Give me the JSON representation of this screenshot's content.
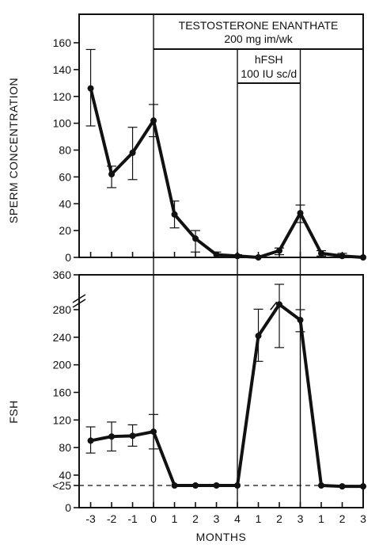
{
  "chart_data": [
    {
      "type": "line",
      "ylabel": "SPERM CONCENTRATION",
      "ylim": [
        0,
        160
      ],
      "yticks": [
        "0",
        "20",
        "40",
        "60",
        "80",
        "100",
        "120",
        "140",
        "160"
      ],
      "series": [
        {
          "x": [
            -3,
            -2,
            -1,
            0,
            1,
            2,
            3,
            4,
            5,
            6,
            7,
            8,
            9,
            10
          ],
          "values": [
            126,
            62,
            78,
            102,
            32,
            14,
            2,
            1,
            0,
            5,
            33,
            3,
            1,
            0
          ],
          "err_low": [
            98,
            52,
            58,
            90,
            22,
            4,
            0,
            0,
            0,
            2,
            26,
            1,
            0,
            0
          ],
          "err_high": [
            155,
            68,
            97,
            114,
            42,
            20,
            4,
            2,
            1,
            7,
            39,
            5,
            3,
            1
          ]
        }
      ]
    },
    {
      "type": "line",
      "ylabel": "FSH",
      "ylim": [
        0,
        360
      ],
      "axis_break": true,
      "yticks": [
        "0",
        "<25",
        "40",
        "80",
        "120",
        "160",
        "200",
        "240",
        "280",
        "360"
      ],
      "reference_line": {
        "value": 25,
        "style": "dashed"
      },
      "series": [
        {
          "x": [
            -3,
            -2,
            -1,
            0,
            1,
            2,
            3,
            4,
            5,
            6,
            7,
            8,
            9,
            10
          ],
          "values": [
            90,
            96,
            97,
            103,
            25,
            25,
            25,
            25,
            242,
            302,
            265,
            25,
            24,
            24
          ],
          "err_low": [
            72,
            75,
            82,
            78,
            25,
            25,
            25,
            25,
            205,
            225,
            248,
            25,
            24,
            24
          ],
          "err_high": [
            110,
            117,
            113,
            128,
            25,
            25,
            25,
            25,
            282,
            345,
            280,
            25,
            24,
            24
          ],
          "break_marks_between": [
            5,
            6
          ]
        }
      ]
    }
  ],
  "x_axis": {
    "xlabel": "MONTHS",
    "xticks": [
      "-3",
      "-2",
      "-1",
      "0",
      "1",
      "2",
      "3",
      "4",
      "1",
      "2",
      "3",
      "1",
      "2",
      "3"
    ]
  },
  "treatments": [
    {
      "lines": [
        "TESTOSTERONE ENANTHATE",
        "200 mg im/wk"
      ],
      "x_start": 0,
      "x_end": 10
    },
    {
      "lines": [
        "hFSH",
        "100 IU sc/d"
      ],
      "x_start": 4,
      "x_end": 7
    }
  ],
  "colors": {
    "ink": "#111111",
    "background": "#ffffff"
  }
}
